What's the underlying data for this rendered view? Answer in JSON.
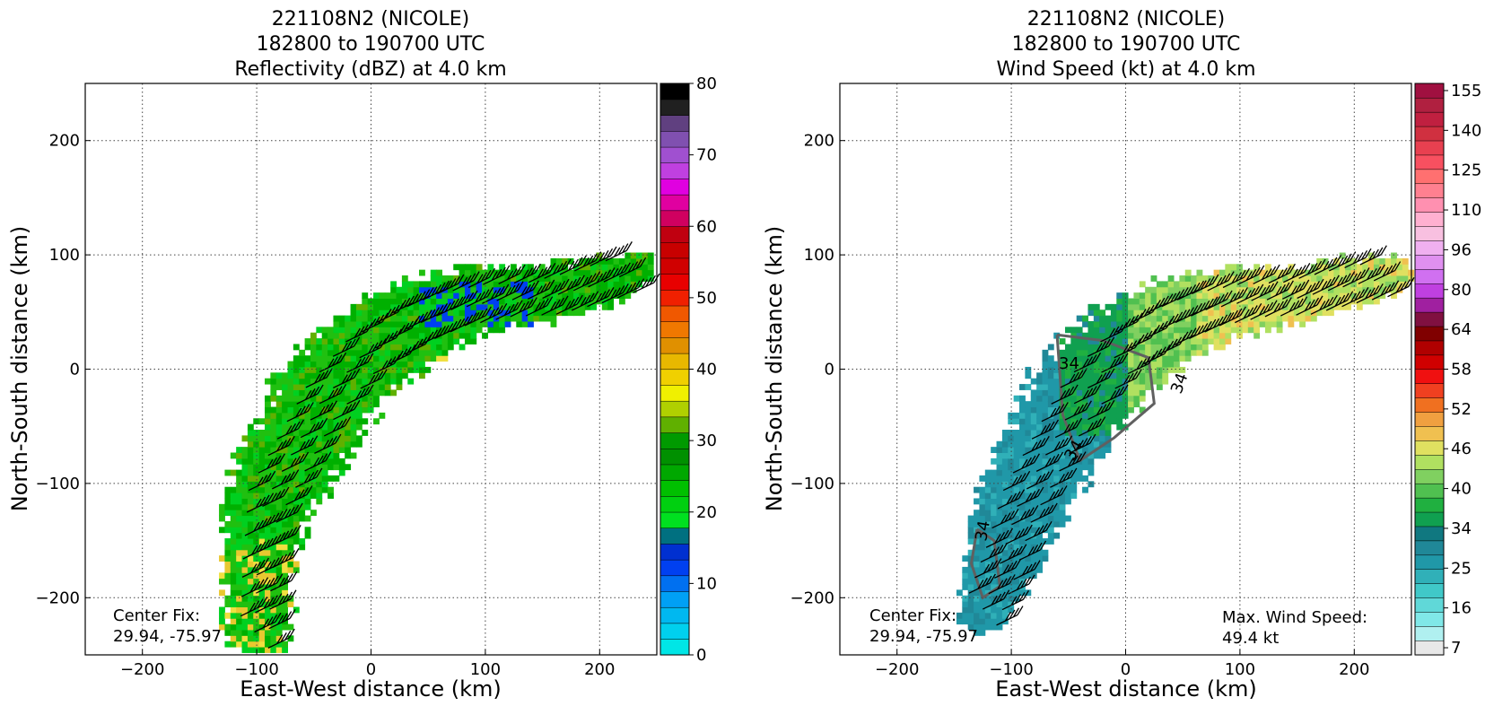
{
  "chart_data": [
    {
      "type": "heatmap",
      "title_lines": [
        "221108N2 (NICOLE)",
        "182800 to 190700 UTC",
        "Reflectivity (dBZ) at 4.0 km"
      ],
      "xlabel": "East-West distance (km)",
      "ylabel": "North-South distance (km)",
      "xlim": [
        -250,
        250
      ],
      "ylim": [
        -250,
        250
      ],
      "xticks": [
        -200,
        -100,
        0,
        100,
        200
      ],
      "yticks": [
        -200,
        -100,
        0,
        100,
        200
      ],
      "xtick_labels": [
        "−200",
        "−100",
        "0",
        "100",
        "200"
      ],
      "ytick_labels": [
        "−200",
        "−100",
        "0",
        "100",
        "200"
      ],
      "grid": true,
      "colorbar": {
        "min": 0,
        "max": 80,
        "ticks": [
          0,
          10,
          20,
          30,
          40,
          50,
          60,
          70,
          80
        ],
        "tick_labels": [
          "0",
          "10",
          "20",
          "30",
          "40",
          "50",
          "60",
          "70",
          "80"
        ],
        "colors": [
          "#00e6e6",
          "#00d0ee",
          "#00b8f0",
          "#00a0f5",
          "#0070f0",
          "#0040f0",
          "#0030d0",
          "#007080",
          "#00e020",
          "#00d010",
          "#00c000",
          "#00a800",
          "#009000",
          "#009a00",
          "#60b000",
          "#b0d000",
          "#f0f000",
          "#f0d000",
          "#e8b800",
          "#e09000",
          "#f07800",
          "#f05800",
          "#f02000",
          "#e80000",
          "#d00000",
          "#c80000",
          "#c00010",
          "#d00060",
          "#e000a0",
          "#e000e0",
          "#c040e0",
          "#a050d0",
          "#8050b0",
          "#604080",
          "#202020",
          "#000000"
        ]
      },
      "annotations": [
        "Center Fix:",
        "29.94, -75.97"
      ]
    },
    {
      "type": "heatmap",
      "title_lines": [
        "221108N2 (NICOLE)",
        "182800 to 190700 UTC",
        "Wind Speed (kt) at 4.0 km"
      ],
      "xlabel": "East-West distance (km)",
      "ylabel": "North-South distance (km)",
      "xlim": [
        -250,
        250
      ],
      "ylim": [
        -250,
        250
      ],
      "xticks": [
        -200,
        -100,
        0,
        100,
        200
      ],
      "yticks": [
        -200,
        -100,
        0,
        100,
        200
      ],
      "xtick_labels": [
        "−200",
        "−100",
        "0",
        "100",
        "200"
      ],
      "ytick_labels": [
        "−200",
        "−100",
        "0",
        "100",
        "200"
      ],
      "grid": true,
      "colorbar": {
        "tick_labels": [
          "7",
          "16",
          "25",
          "34",
          "40",
          "46",
          "52",
          "58",
          "64",
          "80",
          "96",
          "110",
          "125",
          "140",
          "155"
        ],
        "colors": [
          "#e8e8e8",
          "#b0f0f0",
          "#80e8e8",
          "#60d8d8",
          "#40c8c8",
          "#30b0b8",
          "#2098a8",
          "#208898",
          "#107880",
          "#10a050",
          "#20b040",
          "#50c050",
          "#80d060",
          "#b0e060",
          "#e0e060",
          "#f0c050",
          "#f0a040",
          "#f07020",
          "#f04020",
          "#f01010",
          "#d00000",
          "#b00000",
          "#800000",
          "#801040",
          "#a020a0",
          "#c040e0",
          "#d070f0",
          "#e090f0",
          "#f0b0f0",
          "#f8c0e0",
          "#ffb0d0",
          "#ff90b0",
          "#ff8090",
          "#ff7070",
          "#f85060",
          "#e84050",
          "#d03040",
          "#c02040",
          "#b02040",
          "#a01040"
        ]
      },
      "contour_labels": [
        "34",
        "34",
        "34",
        "34"
      ],
      "annotations": [
        "Center Fix:",
        "29.94, -75.97",
        "Max. Wind Speed:",
        "49.4 kt"
      ]
    }
  ]
}
